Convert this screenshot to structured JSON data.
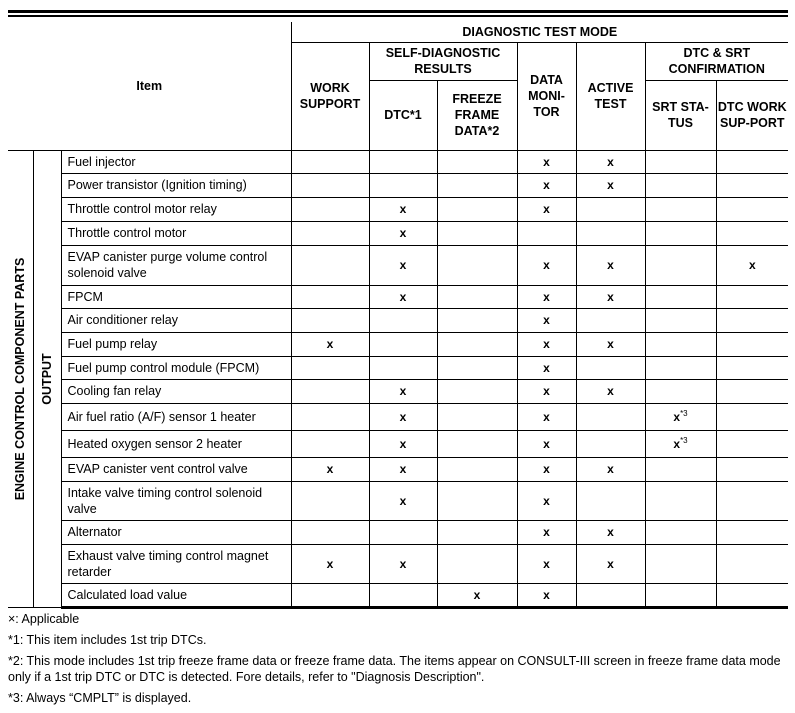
{
  "header": {
    "item": "Item",
    "diag_mode": "DIAGNOSTIC TEST MODE",
    "work_support": "WORK SUPPORT",
    "self_diag": "SELF-DIAGNOSTIC RESULTS",
    "dtc": "DTC*1",
    "freeze": "FREEZE FRAME DATA*2",
    "data_monitor": "DATA MONI-TOR",
    "active_test": "ACTIVE TEST",
    "dtc_srt": "DTC & SRT CONFIRMATION",
    "srt_status": "SRT STA-TUS",
    "dtc_work_support": "DTC WORK SUP-PORT"
  },
  "group_outer": "ENGINE CONTROL COMPONENT PARTS",
  "group_inner": "OUTPUT",
  "rows": [
    {
      "item": "Fuel injector",
      "ws": "",
      "dtc": "",
      "ff": "",
      "dm": "x",
      "at": "x",
      "srt": "",
      "dws": ""
    },
    {
      "item": "Power transistor (Ignition timing)",
      "ws": "",
      "dtc": "",
      "ff": "",
      "dm": "x",
      "at": "x",
      "srt": "",
      "dws": ""
    },
    {
      "item": "Throttle control motor relay",
      "ws": "",
      "dtc": "x",
      "ff": "",
      "dm": "x",
      "at": "",
      "srt": "",
      "dws": ""
    },
    {
      "item": "Throttle control motor",
      "ws": "",
      "dtc": "x",
      "ff": "",
      "dm": "",
      "at": "",
      "srt": "",
      "dws": ""
    },
    {
      "item": "EVAP canister purge volume control solenoid valve",
      "ws": "",
      "dtc": "x",
      "ff": "",
      "dm": "x",
      "at": "x",
      "srt": "",
      "dws": "x"
    },
    {
      "item": "FPCM",
      "ws": "",
      "dtc": "x",
      "ff": "",
      "dm": "x",
      "at": "x",
      "srt": "",
      "dws": ""
    },
    {
      "item": "Air conditioner relay",
      "ws": "",
      "dtc": "",
      "ff": "",
      "dm": "x",
      "at": "",
      "srt": "",
      "dws": ""
    },
    {
      "item": "Fuel pump relay",
      "ws": "x",
      "dtc": "",
      "ff": "",
      "dm": "x",
      "at": "x",
      "srt": "",
      "dws": ""
    },
    {
      "item": "Fuel pump control module (FPCM)",
      "ws": "",
      "dtc": "",
      "ff": "",
      "dm": "x",
      "at": "",
      "srt": "",
      "dws": ""
    },
    {
      "item": "Cooling fan relay",
      "ws": "",
      "dtc": "x",
      "ff": "",
      "dm": "x",
      "at": "x",
      "srt": "",
      "dws": ""
    },
    {
      "item": "Air fuel ratio (A/F) sensor 1 heater",
      "ws": "",
      "dtc": "x",
      "ff": "",
      "dm": "x",
      "at": "",
      "srt": "x",
      "srt_sup": "*3",
      "dws": ""
    },
    {
      "item": "Heated oxygen sensor 2 heater",
      "ws": "",
      "dtc": "x",
      "ff": "",
      "dm": "x",
      "at": "",
      "srt": "x",
      "srt_sup": "*3",
      "dws": ""
    },
    {
      "item": "EVAP canister vent control valve",
      "ws": "x",
      "dtc": "x",
      "ff": "",
      "dm": "x",
      "at": "x",
      "srt": "",
      "dws": ""
    },
    {
      "item": "Intake valve timing control solenoid valve",
      "ws": "",
      "dtc": "x",
      "ff": "",
      "dm": "x",
      "at": "",
      "srt": "",
      "dws": ""
    },
    {
      "item": "Alternator",
      "ws": "",
      "dtc": "",
      "ff": "",
      "dm": "x",
      "at": "x",
      "srt": "",
      "dws": ""
    },
    {
      "item": "Exhaust valve timing control magnet retarder",
      "ws": "x",
      "dtc": "x",
      "ff": "",
      "dm": "x",
      "at": "x",
      "srt": "",
      "dws": ""
    },
    {
      "item": "Calculated load value",
      "ws": "",
      "dtc": "",
      "ff": "x",
      "dm": "x",
      "at": "",
      "srt": "",
      "dws": ""
    }
  ],
  "notes": [
    "×: Applicable",
    "*1: This item includes 1st trip DTCs.",
    "*2: This mode includes 1st trip freeze frame data or freeze frame data. The items appear on CONSULT-III screen in freeze frame data mode only if a 1st trip DTC or DTC is detected. Fore details, refer to \"Diagnosis Description\".",
    "*3: Always “CMPLT” is displayed."
  ]
}
